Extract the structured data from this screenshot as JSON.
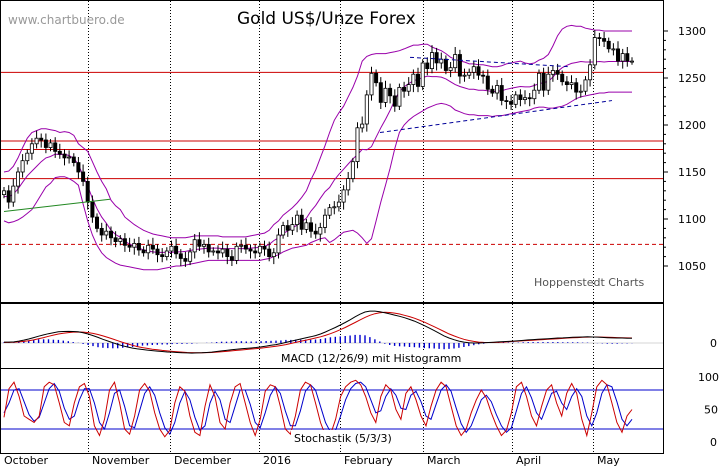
{
  "watermark": "www.chartbuero.de",
  "title": "Gold US$/Unze Forex",
  "credit": "Hoppenstedt Charts",
  "colors": {
    "candle": "#000000",
    "bollinger": "#9900aa",
    "support": "#cc0000",
    "trend": "#000099",
    "trend_green": "#228822",
    "macd_line": "#000000",
    "macd_signal": "#cc0000",
    "histogram": "#0000cc",
    "stoch_k": "#cc0000",
    "stoch_d": "#0000cc",
    "stoch_levels": "#0000cc"
  },
  "x_labels": [
    "October",
    "November",
    "December",
    "2016",
    "February",
    "March",
    "April",
    "May"
  ],
  "price_axis": {
    "ticks": [
      "1300",
      "1250",
      "1200",
      "1150",
      "1100",
      "1050"
    ],
    "ylim": [
      1030,
      1315
    ]
  },
  "macd_axis": {
    "ticks": [
      "0"
    ],
    "label": "MACD (12/26/9) mit Histogramm"
  },
  "stoch_axis": {
    "ticks": [
      "100",
      "50",
      "0"
    ],
    "label": "Stochastik (5/3/3)"
  },
  "chart_data": {
    "type": "candlestick",
    "title": "Gold US$/Unze Forex",
    "x_period": [
      "2015-09-28",
      "2016-05-13"
    ],
    "price_close_series": [
      1130,
      1118,
      1135,
      1150,
      1162,
      1170,
      1180,
      1186,
      1184,
      1176,
      1181,
      1172,
      1169,
      1165,
      1166,
      1160,
      1150,
      1140,
      1118,
      1102,
      1090,
      1083,
      1087,
      1080,
      1076,
      1079,
      1072,
      1070,
      1074,
      1067,
      1064,
      1072,
      1068,
      1062,
      1060,
      1066,
      1071,
      1063,
      1058,
      1055,
      1065,
      1078,
      1071,
      1073,
      1065,
      1066,
      1064,
      1068,
      1060,
      1056,
      1071,
      1072,
      1068,
      1066,
      1064,
      1071,
      1068,
      1060,
      1064,
      1083,
      1093,
      1088,
      1094,
      1104,
      1089,
      1096,
      1087,
      1084,
      1091,
      1104,
      1112,
      1113,
      1118,
      1131,
      1143,
      1161,
      1197,
      1201,
      1232,
      1255,
      1245,
      1224,
      1239,
      1231,
      1220,
      1240,
      1236,
      1243,
      1254,
      1241,
      1266,
      1260,
      1277,
      1266,
      1270,
      1258,
      1261,
      1275,
      1252,
      1253,
      1256,
      1262,
      1253,
      1252,
      1238,
      1234,
      1242,
      1226,
      1225,
      1222,
      1232,
      1227,
      1229,
      1228,
      1237,
      1255,
      1237,
      1254,
      1258,
      1254,
      1246,
      1243,
      1245,
      1235,
      1236,
      1248,
      1264,
      1293,
      1292,
      1289,
      1281,
      1281,
      1268,
      1276,
      1268,
      1268
    ],
    "bollinger_upper": [
      1150,
      1151,
      1156,
      1165,
      1176,
      1186,
      1192,
      1194,
      1196,
      1196,
      1195,
      1194,
      1192,
      1193,
      1192,
      1189,
      1180,
      1176,
      1172,
      1161,
      1150,
      1140,
      1132,
      1120,
      1114,
      1110,
      1102,
      1098,
      1094,
      1091,
      1088,
      1086,
      1084,
      1083,
      1082,
      1081,
      1080,
      1080,
      1080,
      1080,
      1081,
      1082,
      1082,
      1082,
      1082,
      1082,
      1082,
      1081,
      1081,
      1081,
      1081,
      1081,
      1081,
      1082,
      1083,
      1084,
      1085,
      1088,
      1094,
      1098,
      1104,
      1108,
      1112,
      1117,
      1123,
      1130,
      1142,
      1152,
      1165,
      1178,
      1192,
      1205,
      1213,
      1220,
      1230,
      1240,
      1252,
      1268,
      1273,
      1275,
      1276,
      1276,
      1276,
      1277,
      1278,
      1279,
      1281,
      1283,
      1285,
      1285,
      1286,
      1286,
      1283,
      1281,
      1279,
      1276,
      1272,
      1270,
      1268,
      1267,
      1265,
      1265,
      1264,
      1264,
      1263,
      1262,
      1262,
      1263,
      1265,
      1266,
      1267,
      1268,
      1266,
      1265,
      1266,
      1269,
      1271,
      1275,
      1284,
      1295,
      1302,
      1305,
      1306,
      1305,
      1305,
      1303,
      1302,
      1301,
      1301,
      1300,
      1300,
      1300,
      1300,
      1300,
      1300,
      1300,
      1300,
      1300
    ],
    "bollinger_lower": [
      1098,
      1096,
      1097,
      1099,
      1102,
      1106,
      1110,
      1118,
      1126,
      1134,
      1138,
      1144,
      1145,
      1145,
      1143,
      1140,
      1136,
      1116,
      1098,
      1083,
      1072,
      1064,
      1059,
      1056,
      1053,
      1051,
      1050,
      1049,
      1048,
      1047,
      1046,
      1046,
      1046,
      1046,
      1047,
      1048,
      1049,
      1050,
      1050,
      1051,
      1052,
      1053,
      1054,
      1055,
      1056,
      1056,
      1056,
      1056,
      1056,
      1056,
      1056,
      1056,
      1056,
      1056,
      1056,
      1056,
      1057,
      1058,
      1060,
      1062,
      1065,
      1067,
      1069,
      1070,
      1071,
      1072,
      1075,
      1077,
      1079,
      1080,
      1075,
      1078,
      1082,
      1086,
      1087,
      1088,
      1085,
      1080,
      1074,
      1079,
      1098,
      1118,
      1136,
      1154,
      1175,
      1192,
      1200,
      1205,
      1209,
      1212,
      1215,
      1218,
      1220,
      1222,
      1223,
      1222,
      1220,
      1216,
      1214,
      1212,
      1211,
      1211,
      1210,
      1210,
      1210,
      1209,
      1210,
      1210,
      1211,
      1212,
      1213,
      1214,
      1215,
      1216,
      1218,
      1219,
      1219,
      1218,
      1218,
      1219,
      1220,
      1222,
      1225,
      1228,
      1230,
      1231,
      1232,
      1233,
      1234,
      1234,
      1235,
      1235,
      1235,
      1235,
      1235,
      1235,
      1235,
      1235
    ],
    "horizontal_lines": [
      1256,
      1183,
      1174,
      1143
    ],
    "dashed_lines": [
      1073
    ],
    "trendlines_price": [
      {
        "from": [
          1190,
          1272
        ],
        "to": [
          1285,
          1262
        ]
      },
      {
        "from": [
          1190,
          1192
        ],
        "to": [
          1290,
          1226
        ]
      },
      {
        "from": [
          1096,
          1108
        ],
        "to": [
          1100,
          1121
        ]
      }
    ],
    "macd_series": [
      0.6,
      0.6,
      0.7,
      1.2,
      1.9,
      2.6,
      3.5,
      4.4,
      5.2,
      6.0,
      6.6,
      7.2,
      7.4,
      7.5,
      7.4,
      7.2,
      6.6,
      5.8,
      4.8,
      3.6,
      2.4,
      1.3,
      0.2,
      -0.9,
      -1.8,
      -2.6,
      -3.3,
      -3.8,
      -4.2,
      -4.6,
      -4.9,
      -5.2,
      -5.5,
      -5.8,
      -5.9,
      -6.1,
      -6.3,
      -6.4,
      -6.5,
      -6.4,
      -6.3,
      -6.1,
      -5.9,
      -5.5,
      -5.1,
      -4.8,
      -4.4,
      -4.0,
      -3.7,
      -3.5,
      -3.2,
      -2.9,
      -2.5,
      -2.0,
      -1.5,
      -1.0,
      -0.4,
      0.4,
      1.1,
      1.9,
      2.6,
      3.3,
      4.0,
      4.8,
      5.8,
      7.1,
      8.6,
      10.0,
      11.6,
      13.2,
      15.0,
      16.9,
      18.6,
      20.0,
      20.6,
      20.6,
      20.2,
      19.5,
      18.8,
      18.0,
      17.2,
      16.3,
      15.2,
      14.1,
      12.7,
      11.2,
      9.6,
      8.0,
      6.3,
      4.6,
      3.2,
      2.1,
      1.2,
      0.6,
      0.2,
      0.0,
      0.0,
      0.1,
      0.3,
      0.5,
      0.7,
      0.9,
      1.0,
      1.2,
      1.4,
      1.7,
      2.0,
      2.2,
      2.4,
      2.6,
      2.8,
      3.0,
      3.2,
      3.3,
      3.5,
      3.7,
      3.8,
      3.9,
      4.0,
      3.9,
      3.8,
      3.6,
      3.4,
      3.3,
      3.2,
      3.2,
      3.1,
      3.1
    ],
    "macd_signal": [
      0.3,
      0.4,
      0.5,
      0.7,
      1.0,
      1.4,
      2.0,
      2.7,
      3.5,
      4.3,
      5.1,
      5.8,
      6.3,
      6.7,
      7.0,
      7.1,
      7.0,
      6.7,
      6.2,
      5.5,
      4.6,
      3.6,
      2.6,
      1.5,
      0.4,
      -0.6,
      -1.5,
      -2.3,
      -3.0,
      -3.5,
      -4.0,
      -4.4,
      -4.8,
      -5.1,
      -5.4,
      -5.7,
      -5.9,
      -6.1,
      -6.2,
      -6.3,
      -6.3,
      -6.2,
      -6.1,
      -5.9,
      -5.7,
      -5.4,
      -5.1,
      -4.8,
      -4.5,
      -4.2,
      -3.9,
      -3.6,
      -3.3,
      -2.9,
      -2.5,
      -2.1,
      -1.6,
      -1.0,
      -0.3,
      0.4,
      1.1,
      1.8,
      2.5,
      3.2,
      4.0,
      4.9,
      6.0,
      7.2,
      8.6,
      10.0,
      11.6,
      13.2,
      14.9,
      16.5,
      17.9,
      18.9,
      19.5,
      19.8,
      19.7,
      19.3,
      18.7,
      17.9,
      17.0,
      16.0,
      14.8,
      13.5,
      12.0,
      10.5,
      9.0,
      7.4,
      5.9,
      4.6,
      3.4,
      2.4,
      1.6,
      1.0,
      0.6,
      0.4,
      0.3,
      0.3,
      0.4,
      0.6,
      0.8,
      1.0,
      1.2,
      1.4,
      1.6,
      1.8,
      2.0,
      2.2,
      2.4,
      2.6,
      2.8,
      3.0,
      3.2,
      3.4,
      3.5,
      3.7,
      3.8,
      3.9,
      3.9,
      3.8,
      3.7,
      3.6,
      3.5,
      3.4,
      3.3,
      3.2
    ],
    "stochastic_k": [
      38,
      82,
      92,
      70,
      40,
      35,
      30,
      40,
      85,
      92,
      88,
      60,
      30,
      25,
      60,
      85,
      90,
      70,
      25,
      10,
      35,
      80,
      92,
      60,
      20,
      12,
      40,
      80,
      90,
      78,
      45,
      20,
      8,
      18,
      60,
      85,
      78,
      40,
      15,
      10,
      55,
      88,
      70,
      30,
      20,
      60,
      85,
      90,
      60,
      30,
      10,
      35,
      78,
      88,
      85,
      55,
      20,
      12,
      40,
      80,
      92,
      88,
      60,
      30,
      10,
      12,
      35,
      70,
      85,
      92,
      95,
      88,
      70,
      45,
      30,
      70,
      88,
      80,
      50,
      35,
      75,
      85,
      65,
      40,
      25,
      55,
      80,
      92,
      85,
      55,
      25,
      10,
      20,
      45,
      65,
      80,
      68,
      45,
      25,
      10,
      18,
      45,
      85,
      92,
      70,
      40,
      25,
      55,
      80,
      88,
      60,
      40,
      75,
      90,
      75,
      35,
      10,
      45,
      85,
      95,
      88,
      60,
      30,
      15,
      40,
      50
    ],
    "stochastic_d": [
      45,
      60,
      80,
      82,
      62,
      42,
      32,
      38,
      60,
      82,
      90,
      78,
      52,
      35,
      40,
      65,
      82,
      82,
      60,
      30,
      20,
      45,
      75,
      80,
      55,
      25,
      22,
      48,
      75,
      85,
      72,
      45,
      22,
      12,
      30,
      60,
      78,
      65,
      38,
      18,
      25,
      60,
      78,
      65,
      35,
      30,
      55,
      80,
      80,
      58,
      30,
      22,
      45,
      72,
      85,
      75,
      48,
      25,
      25,
      48,
      78,
      88,
      80,
      55,
      30,
      15,
      18,
      40,
      65,
      82,
      90,
      92,
      85,
      65,
      45,
      48,
      70,
      82,
      72,
      52,
      50,
      72,
      78,
      62,
      40,
      35,
      58,
      80,
      88,
      78,
      52,
      28,
      15,
      25,
      45,
      65,
      72,
      62,
      42,
      25,
      15,
      22,
      48,
      75,
      85,
      68,
      45,
      35,
      55,
      75,
      78,
      60,
      50,
      70,
      82,
      70,
      40,
      25,
      45,
      75,
      88,
      85,
      62,
      35,
      25,
      35
    ],
    "stochastic_levels": [
      80,
      20
    ]
  }
}
